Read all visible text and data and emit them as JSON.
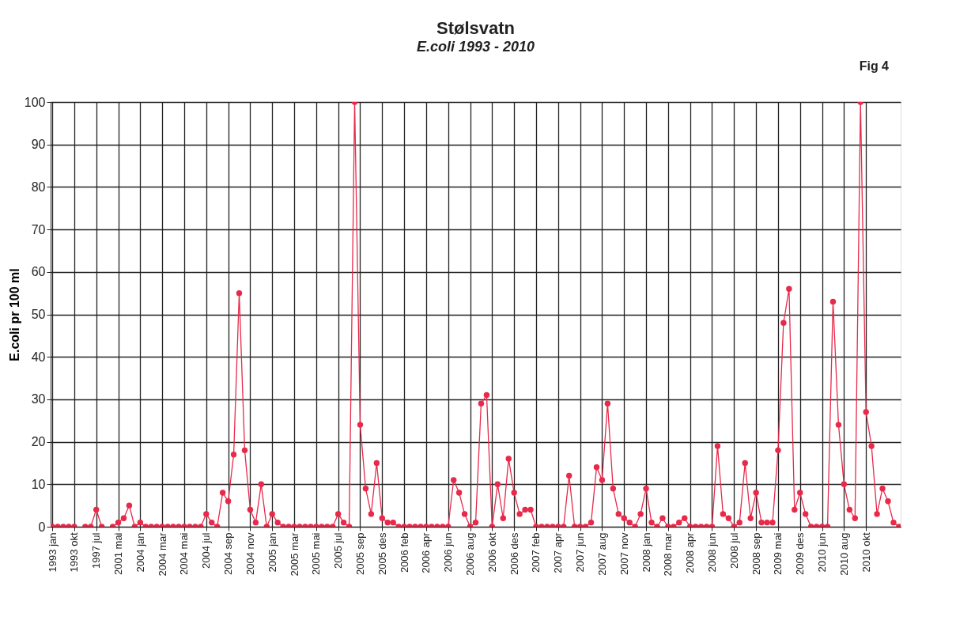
{
  "chart_data": {
    "type": "line",
    "title": "Stølsvatn",
    "subtitle": "E.coli 1993 - 2010",
    "ylabel": "E.coli pr 100 ml",
    "annotations": [
      "Fig 4"
    ],
    "categories": [
      "1993 jan",
      null,
      null,
      null,
      "1993 okt",
      null,
      null,
      null,
      "1997 jul",
      null,
      null,
      null,
      "2001 mai",
      null,
      null,
      null,
      "2004 jan",
      null,
      null,
      null,
      "2004 mar",
      null,
      null,
      null,
      "2004 mai",
      null,
      null,
      null,
      "2004 jul",
      null,
      null,
      null,
      "2004 sep",
      null,
      null,
      null,
      "2004 nov",
      null,
      null,
      null,
      "2005 jan",
      null,
      null,
      null,
      "2005 mar",
      null,
      null,
      null,
      "2005 mai",
      null,
      null,
      null,
      "2005 jul",
      null,
      null,
      null,
      "2005 sep",
      null,
      null,
      null,
      "2005 des",
      null,
      null,
      null,
      "2006 feb",
      null,
      null,
      null,
      "2006 apr",
      null,
      null,
      null,
      "2006 jun",
      null,
      null,
      null,
      "2006 aug",
      null,
      null,
      null,
      "2006 okt",
      null,
      null,
      null,
      "2006 des",
      null,
      null,
      null,
      "2007 feb",
      null,
      null,
      null,
      "2007 apr",
      null,
      null,
      null,
      "2007 jun",
      null,
      null,
      null,
      "2007 aug",
      null,
      null,
      null,
      "2007 nov",
      null,
      null,
      null,
      "2008 jan",
      null,
      null,
      null,
      "2008 mar",
      null,
      null,
      null,
      "2008 apr",
      null,
      null,
      null,
      "2008 jun",
      null,
      null,
      null,
      "2008 jul",
      null,
      null,
      null,
      "2008 sep",
      null,
      null,
      null,
      "2009 mai",
      null,
      null,
      null,
      "2009 des",
      null,
      null,
      null,
      "2010 jun",
      null,
      null,
      null,
      "2010 aug",
      null,
      null,
      null,
      "2010 okt",
      null,
      null,
      null,
      null,
      null,
      null
    ],
    "series": [
      {
        "color": "#e8294a",
        "values": [
          0,
          0,
          0,
          0,
          0,
          null,
          0,
          0,
          4,
          0,
          null,
          0,
          1,
          2,
          5,
          0,
          1,
          0,
          0,
          0,
          0,
          0,
          0,
          0,
          0,
          0,
          0,
          0,
          3,
          1,
          0,
          8,
          6,
          17,
          55,
          18,
          4,
          1,
          10,
          0,
          3,
          1,
          0,
          0,
          0,
          0,
          0,
          0,
          0,
          0,
          0,
          0,
          3,
          1,
          0,
          100,
          24,
          9,
          3,
          15,
          2,
          1,
          1,
          0,
          0,
          0,
          0,
          0,
          0,
          0,
          0,
          0,
          0,
          11,
          8,
          3,
          0,
          1,
          29,
          31,
          0,
          10,
          2,
          16,
          8,
          3,
          4,
          4,
          0,
          0,
          0,
          0,
          0,
          0,
          12,
          0,
          0,
          0,
          1,
          14,
          11,
          29,
          9,
          3,
          2,
          1,
          0,
          3,
          9,
          1,
          0,
          2,
          0,
          0,
          1,
          2,
          0,
          0,
          0,
          0,
          0,
          19,
          3,
          2,
          0,
          1,
          15,
          2,
          8,
          1,
          1,
          1,
          18,
          48,
          56,
          4,
          8,
          3,
          0,
          0,
          0,
          0,
          53,
          24,
          10,
          4,
          2,
          100,
          27,
          19,
          3,
          9,
          6,
          1,
          0
        ]
      }
    ],
    "ylim": [
      0,
      100
    ],
    "yticks": [
      0,
      10,
      20,
      30,
      40,
      50,
      60,
      70,
      80,
      90,
      100
    ],
    "grid": true,
    "marker": "circle",
    "line_style": "solid"
  }
}
